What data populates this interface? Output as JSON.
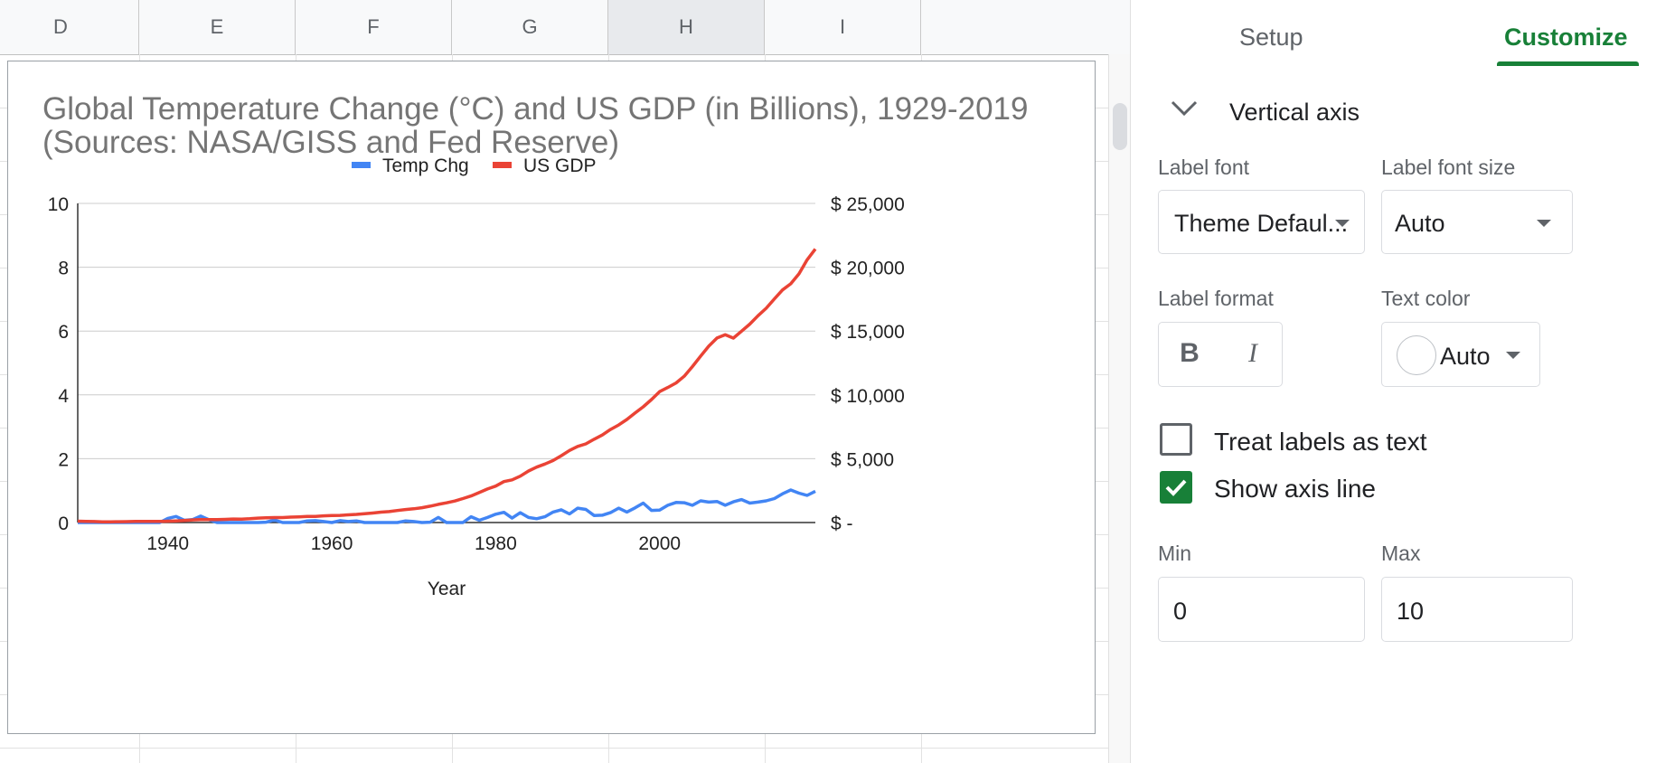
{
  "sheet": {
    "columns": [
      {
        "label": "D",
        "selected": false
      },
      {
        "label": "E",
        "selected": false
      },
      {
        "label": "F",
        "selected": false
      },
      {
        "label": "G",
        "selected": false
      },
      {
        "label": "H",
        "selected": true
      },
      {
        "label": "I",
        "selected": false
      }
    ]
  },
  "chart": {
    "title": "Global Temperature Change (°C) and US GDP (in Billions), 1929-2019\n(Sources: NASA/GISS and Fed Reserve)",
    "xlabel": "Year",
    "x_ticks": [
      "1940",
      "1960",
      "1980",
      "2000"
    ],
    "left_ticks": [
      "0",
      "2",
      "4",
      "6",
      "8",
      "10"
    ],
    "right_ticks": [
      "$ -",
      "$ 5,000",
      "$ 10,000",
      "$ 15,000",
      "$ 20,000",
      "$ 25,000"
    ],
    "legend": [
      {
        "label": "Temp Chg",
        "color": "#4285f4"
      },
      {
        "label": "US GDP",
        "color": "#ea4335"
      }
    ]
  },
  "chart_data": {
    "type": "line",
    "title": "Global Temperature Change (°C) and US GDP (in Billions), 1929-2019 (Sources: NASA/GISS and Fed Reserve)",
    "xlabel": "Year",
    "ylabel": "",
    "xlim": [
      1929,
      2019
    ],
    "ylim_left": [
      0,
      10
    ],
    "ylim_right": [
      0,
      25000
    ],
    "grid": true,
    "legend_position": "top",
    "x": [
      1929,
      1930,
      1931,
      1932,
      1933,
      1934,
      1935,
      1936,
      1937,
      1938,
      1939,
      1940,
      1941,
      1942,
      1943,
      1944,
      1945,
      1946,
      1947,
      1948,
      1949,
      1950,
      1951,
      1952,
      1953,
      1954,
      1955,
      1956,
      1957,
      1958,
      1959,
      1960,
      1961,
      1962,
      1963,
      1964,
      1965,
      1966,
      1967,
      1968,
      1969,
      1970,
      1971,
      1972,
      1973,
      1974,
      1975,
      1976,
      1977,
      1978,
      1979,
      1980,
      1981,
      1982,
      1983,
      1984,
      1985,
      1986,
      1987,
      1988,
      1989,
      1990,
      1991,
      1992,
      1993,
      1994,
      1995,
      1996,
      1997,
      1998,
      1999,
      2000,
      2001,
      2002,
      2003,
      2004,
      2005,
      2006,
      2007,
      2008,
      2009,
      2010,
      2011,
      2012,
      2013,
      2014,
      2015,
      2016,
      2017,
      2018,
      2019
    ],
    "series": [
      {
        "name": "Temp Chg",
        "axis": "left",
        "color": "#4285f4",
        "values": [
          -0.29,
          -0.14,
          -0.09,
          -0.16,
          -0.29,
          -0.13,
          -0.2,
          -0.15,
          -0.03,
          -0.03,
          -0.02,
          0.13,
          0.19,
          0.07,
          0.09,
          0.2,
          0.09,
          -0.07,
          -0.03,
          -0.11,
          -0.11,
          -0.17,
          -0.07,
          0.01,
          0.08,
          -0.13,
          -0.14,
          -0.19,
          0.05,
          0.06,
          0.03,
          -0.03,
          0.06,
          0.03,
          0.05,
          -0.2,
          -0.11,
          -0.06,
          -0.02,
          -0.08,
          0.05,
          0.03,
          -0.08,
          0.01,
          0.16,
          -0.07,
          -0.01,
          -0.1,
          0.18,
          0.07,
          0.16,
          0.26,
          0.32,
          0.14,
          0.31,
          0.16,
          0.12,
          0.18,
          0.33,
          0.4,
          0.27,
          0.45,
          0.41,
          0.22,
          0.23,
          0.31,
          0.45,
          0.33,
          0.46,
          0.61,
          0.38,
          0.39,
          0.54,
          0.63,
          0.62,
          0.54,
          0.68,
          0.64,
          0.66,
          0.54,
          0.65,
          0.72,
          0.61,
          0.64,
          0.68,
          0.75,
          0.9,
          1.02,
          0.92,
          0.85,
          0.98
        ]
      },
      {
        "name": "US GDP",
        "axis": "right",
        "color": "#ea4335",
        "values": [
          104.6,
          92.2,
          77.4,
          59.5,
          57.2,
          66.8,
          74.2,
          84.8,
          93.0,
          87.4,
          93.4,
          102.9,
          129.3,
          166.0,
          203.1,
          224.4,
          228.0,
          227.5,
          249.6,
          274.5,
          272.5,
          299.8,
          346.9,
          367.3,
          389.2,
          390.5,
          425.5,
          449.4,
          474.0,
          481.2,
          521.7,
          542.4,
          562.2,
          603.9,
          637.5,
          684.5,
          742.3,
          813.4,
          859.9,
          940.4,
          1017.6,
          1073.3,
          1164.9,
          1279.1,
          1425.4,
          1545.2,
          1684.9,
          1873.4,
          2081.8,
          2351.6,
          2627.3,
          2857.3,
          3207.0,
          3343.8,
          3634.0,
          4037.6,
          4339.0,
          4579.6,
          4855.2,
          5236.4,
          5641.6,
          5963.1,
          6158.1,
          6520.3,
          6858.6,
          7287.2,
          7639.7,
          8073.1,
          8577.6,
          9062.8,
          9630.7,
          10252.3,
          10581.8,
          10936.4,
          11458.2,
          12213.7,
          13036.6,
          13814.6,
          14451.9,
          14712.8,
          14448.9,
          14992.1,
          15542.6,
          16197.0,
          16784.9,
          17521.7,
          18219.3,
          18707.2,
          19485.4,
          20580.2,
          21427.7
        ]
      }
    ]
  },
  "panel": {
    "tabs": {
      "setup": "Setup",
      "customize": "Customize"
    },
    "section_title": "Vertical axis",
    "label_font": {
      "label": "Label font",
      "value": "Theme Defaul..."
    },
    "label_font_size": {
      "label": "Label font size",
      "value": "Auto"
    },
    "label_format": {
      "label": "Label format",
      "bold": "B",
      "italic": "I"
    },
    "text_color": {
      "label": "Text color",
      "value": "Auto"
    },
    "treat_labels": {
      "label": "Treat labels as text",
      "checked": false
    },
    "show_axis_line": {
      "label": "Show axis line",
      "checked": true
    },
    "min": {
      "label": "Min",
      "value": "0"
    },
    "max": {
      "label": "Max",
      "value": "10"
    }
  }
}
